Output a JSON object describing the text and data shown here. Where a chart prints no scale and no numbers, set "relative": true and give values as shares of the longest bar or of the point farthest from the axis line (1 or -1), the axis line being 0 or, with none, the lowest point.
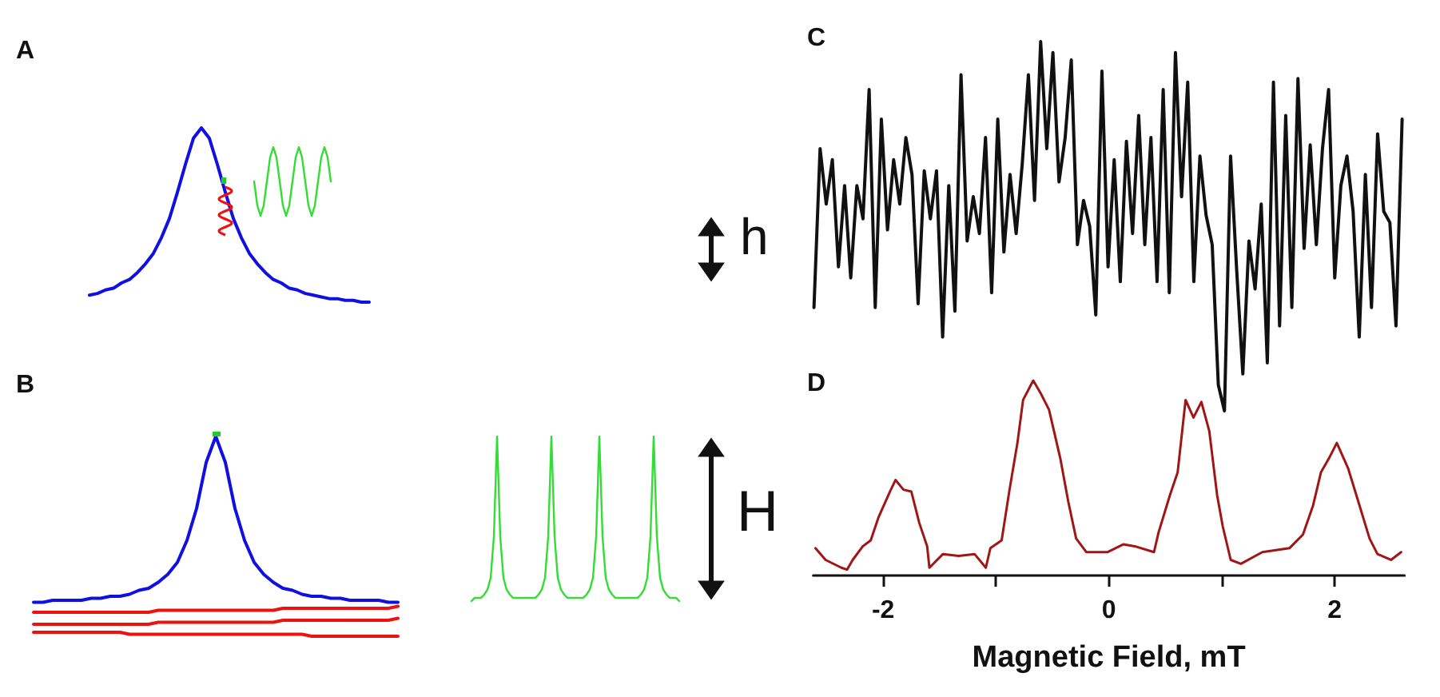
{
  "chart_data": [
    {
      "type": "line",
      "title": "A",
      "relative": true,
      "marker": "none",
      "line_style": "solid",
      "categories": [
        null,
        null,
        null,
        null,
        null,
        null,
        null,
        null,
        null,
        null,
        null,
        null,
        null,
        null,
        null,
        null,
        null,
        null,
        null,
        null,
        null,
        null,
        null,
        null,
        null,
        null,
        null,
        null,
        null,
        null,
        null,
        null,
        null,
        null,
        null,
        null
      ],
      "series": [
        {
          "color": "#1010e0",
          "values": [
            0.04,
            0.05,
            0.07,
            0.08,
            0.11,
            0.13,
            0.17,
            0.22,
            0.28,
            0.37,
            0.48,
            0.63,
            0.79,
            0.94,
            1,
            0.94,
            0.79,
            0.63,
            0.48,
            0.37,
            0.28,
            0.22,
            0.17,
            0.13,
            0.11,
            0.08,
            0.07,
            0.05,
            0.04,
            0.03,
            0.02,
            0.02,
            0.01,
            0.01,
            0,
            0
          ]
        }
      ]
    },
    {
      "type": "line",
      "relative": true,
      "marker": "none",
      "line_style": "solid",
      "categories": [
        null,
        null,
        null,
        null,
        null,
        null,
        null,
        null,
        null,
        null,
        null,
        null,
        null,
        null,
        null,
        null,
        null,
        null,
        null,
        null,
        null,
        null,
        null,
        null,
        null
      ],
      "series": [
        {
          "color": "#33dd33",
          "values": [
            0.5,
            0.15,
            0,
            0.15,
            0.5,
            0.85,
            1,
            0.85,
            0.5,
            0.15,
            0,
            0.15,
            0.5,
            0.85,
            1,
            0.85,
            0.5,
            0.15,
            0,
            0.15,
            0.5,
            0.85,
            1,
            0.85,
            0.5
          ]
        }
      ]
    },
    {
      "type": "line",
      "title": "C",
      "annotations": [
        "h"
      ],
      "relative": true,
      "marker": "none",
      "line_style": "solid",
      "categories": [
        null,
        null,
        null,
        null,
        null,
        null,
        null,
        null,
        null,
        null,
        null,
        null,
        null,
        null,
        null,
        null,
        null,
        null,
        null,
        null,
        null,
        null,
        null,
        null,
        null,
        null,
        null,
        null,
        null,
        null,
        null,
        null,
        null,
        null,
        null,
        null,
        null,
        null,
        null,
        null,
        null,
        null,
        null,
        null,
        null,
        null,
        null,
        null,
        null,
        null,
        null,
        null,
        null,
        null,
        null,
        null,
        null,
        null,
        null,
        null,
        null,
        null,
        null,
        null,
        null,
        null,
        null,
        null,
        null,
        null,
        null,
        null,
        null,
        null,
        null,
        null,
        null,
        null,
        null,
        null,
        null,
        null,
        null,
        null,
        null,
        null,
        null,
        null,
        null,
        null,
        null,
        null,
        null,
        null,
        null,
        null,
        null
      ],
      "series": [
        {
          "color": "#111111",
          "values": [
            0.28,
            0.71,
            0.56,
            0.68,
            0.39,
            0.61,
            0.36,
            0.61,
            0.52,
            0.87,
            0.28,
            0.79,
            0.49,
            0.68,
            0.56,
            0.74,
            0.64,
            0.29,
            0.65,
            0.52,
            0.65,
            0.2,
            0.61,
            0.27,
            0.91,
            0.46,
            0.58,
            0.48,
            0.74,
            0.32,
            0.79,
            0.43,
            0.64,
            0.48,
            0.67,
            0.91,
            0.57,
            1,
            0.71,
            0.97,
            0.62,
            0.74,
            0.95,
            0.45,
            0.57,
            0.5,
            0.26,
            0.92,
            0.39,
            0.68,
            0.35,
            0.73,
            0.48,
            0.8,
            0.45,
            0.74,
            0.35,
            0.87,
            0.32,
            0.97,
            0.58,
            0.89,
            0.35,
            0.69,
            0.53,
            0.45,
            0.07,
            0,
            0.69,
            0.38,
            0.1,
            0.46,
            0.33,
            0.56,
            0.13,
            0.89,
            0.23,
            0.8,
            0.28,
            0.9,
            0.44,
            0.72,
            0.45,
            0.71,
            0.87,
            0.36,
            0.61,
            0.69,
            0.54,
            0.2,
            0.64,
            0.28,
            0.75,
            0.54,
            0.51,
            0.23,
            0.79
          ]
        }
      ]
    },
    {
      "type": "line",
      "title": "B",
      "relative": true,
      "marker": "none",
      "line_style": "solid",
      "categories": [
        null,
        null,
        null,
        null,
        null,
        null,
        null,
        null,
        null,
        null,
        null,
        null,
        null,
        null,
        null,
        null,
        null,
        null,
        null,
        null,
        null,
        null,
        null,
        null,
        null,
        null,
        null,
        null,
        null,
        null,
        null,
        null,
        null,
        null,
        null,
        null,
        null,
        null,
        null
      ],
      "series": [
        {
          "color": "#1010e0",
          "values": [
            0.17,
            0.17,
            0.18,
            0.18,
            0.18,
            0.18,
            0.19,
            0.19,
            0.2,
            0.2,
            0.21,
            0.23,
            0.24,
            0.27,
            0.31,
            0.37,
            0.48,
            0.64,
            0.87,
            1,
            0.87,
            0.64,
            0.48,
            0.37,
            0.31,
            0.27,
            0.24,
            0.23,
            0.21,
            0.2,
            0.2,
            0.19,
            0.19,
            0.18,
            0.18,
            0.18,
            0.18,
            0.17,
            0.17
          ]
        },
        {
          "color": "#ee1111",
          "values": [
            0.12,
            0.12,
            0.12,
            0.12,
            0.12,
            0.12,
            0.12,
            0.12,
            0.12,
            0.12,
            0.12,
            0.12,
            0.12,
            0.13,
            0.13,
            0.13,
            0.13,
            0.13,
            0.13,
            0.13,
            0.13,
            0.13,
            0.13,
            0.13,
            0.13,
            0.13,
            0.14,
            0.14,
            0.14,
            0.14,
            0.14,
            0.14,
            0.14,
            0.14,
            0.14,
            0.14,
            0.14,
            0.14,
            0.15
          ]
        },
        {
          "color": "#ee1111",
          "values": [
            0.06,
            0.06,
            0.06,
            0.06,
            0.06,
            0.06,
            0.06,
            0.06,
            0.06,
            0.06,
            0.06,
            0.06,
            0.06,
            0.07,
            0.07,
            0.07,
            0.07,
            0.07,
            0.07,
            0.07,
            0.07,
            0.07,
            0.07,
            0.07,
            0.07,
            0.07,
            0.08,
            0.08,
            0.08,
            0.08,
            0.08,
            0.08,
            0.08,
            0.08,
            0.08,
            0.08,
            0.08,
            0.08,
            0.09
          ]
        },
        {
          "color": "#ee1111",
          "values": [
            0.02,
            0.02,
            0.02,
            0.02,
            0.02,
            0.02,
            0.02,
            0.02,
            0.02,
            0.02,
            0.01,
            0.01,
            0.01,
            0.01,
            0.01,
            0.01,
            0.01,
            0.01,
            0.01,
            0.01,
            0.01,
            0.01,
            0.01,
            0.01,
            0.01,
            0.01,
            0.01,
            0.01,
            0.01,
            0,
            0,
            0,
            0,
            0,
            0,
            0,
            0,
            0,
            0
          ]
        }
      ]
    },
    {
      "type": "line",
      "relative": true,
      "marker": "none",
      "line_style": "solid",
      "categories": [
        null,
        null,
        null,
        null,
        null,
        null,
        null,
        null,
        null,
        null,
        null,
        null,
        null,
        null,
        null,
        null,
        null,
        null,
        null,
        null,
        null,
        null,
        null,
        null,
        null,
        null,
        null,
        null,
        null,
        null,
        null,
        null,
        null,
        null,
        null,
        null,
        null,
        null,
        null,
        null,
        null,
        null,
        null,
        null,
        null,
        null,
        null,
        null,
        null,
        null,
        null,
        null,
        null,
        null,
        null,
        null,
        null,
        null,
        null,
        null,
        null,
        null,
        null,
        null,
        null,
        null
      ],
      "series": [
        {
          "color": "#33dd33",
          "values": [
            0,
            0.02,
            0.02,
            0.02,
            0.04,
            0.07,
            0.14,
            0.39,
            1,
            0.39,
            0.14,
            0.07,
            0.04,
            0.02,
            0.02,
            0.02,
            0.02,
            0.02,
            0.02,
            0.02,
            0.02,
            0.04,
            0.07,
            0.14,
            0.39,
            1,
            0.39,
            0.14,
            0.07,
            0.04,
            0.02,
            0.02,
            0.02,
            0.02,
            0.02,
            0.02,
            0.04,
            0.07,
            0.14,
            0.39,
            1,
            0.39,
            0.14,
            0.07,
            0.04,
            0.02,
            0.02,
            0.02,
            0.02,
            0.02,
            0.02,
            0.02,
            0.02,
            0.04,
            0.07,
            0.14,
            0.39,
            1,
            0.39,
            0.14,
            0.07,
            0.04,
            0.02,
            0.02,
            0.02,
            0
          ]
        }
      ]
    },
    {
      "type": "line",
      "title": "D",
      "xlabel": "Magnetic Field, mT",
      "annotations": [
        "H"
      ],
      "relative": true,
      "marker": "none",
      "line_style": "solid",
      "xlim": [
        -2.62,
        2.62
      ],
      "xticks": [
        -2,
        {
          "value": -1,
          "label": null
        },
        0,
        {
          "value": 1,
          "label": null
        },
        2
      ],
      "series": [
        {
          "color": "#a01515",
          "x": [
            -2.6,
            -2.51,
            -2.37,
            -2.32,
            -2.27,
            -2.18,
            -2.11,
            -2.04,
            -1.94,
            -1.89,
            -1.82,
            -1.75,
            -1.68,
            -1.61,
            -1.59,
            -1.47,
            -1.33,
            -1.19,
            -1.09,
            -1.05,
            -0.95,
            -0.88,
            -0.81,
            -0.76,
            -0.67,
            -0.6,
            -0.53,
            -0.43,
            -0.36,
            -0.29,
            -0.2,
            -0.01,
            0.13,
            0.23,
            0.4,
            0.44,
            0.54,
            0.61,
            0.68,
            0.75,
            0.82,
            0.89,
            0.96,
            1.01,
            1.08,
            1.17,
            1.36,
            1.6,
            1.72,
            1.81,
            1.88,
            1.95,
            2.02,
            2.12,
            2.21,
            2.31,
            2.38,
            2.5,
            2.59
          ],
          "values": [
            0.14,
            0.08,
            0.04,
            0.03,
            0.08,
            0.15,
            0.18,
            0.3,
            0.43,
            0.49,
            0.44,
            0.43,
            0.27,
            0.15,
            0.04,
            0.11,
            0.1,
            0.11,
            0.04,
            0.14,
            0.18,
            0.44,
            0.68,
            0.9,
            1,
            0.93,
            0.85,
            0.6,
            0.38,
            0.19,
            0.12,
            0.12,
            0.16,
            0.15,
            0.12,
            0.22,
            0.41,
            0.53,
            0.9,
            0.81,
            0.89,
            0.74,
            0.41,
            0.25,
            0.08,
            0.06,
            0.12,
            0.14,
            0.21,
            0.36,
            0.53,
            0.6,
            0.68,
            0.55,
            0.38,
            0.19,
            0.11,
            0.08,
            0.12
          ]
        }
      ]
    }
  ]
}
